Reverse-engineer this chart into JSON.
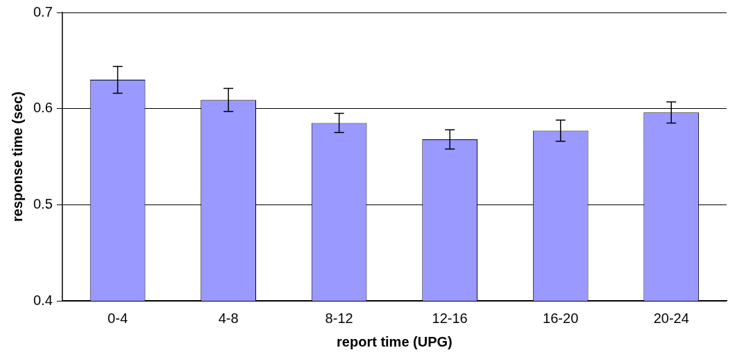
{
  "chart_data": {
    "type": "bar",
    "xlabel": "report time (UPG)",
    "ylabel": "response time (sec)",
    "categories": [
      "0-4",
      "4-8",
      "8-12",
      "12-16",
      "16-20",
      "20-24"
    ],
    "values": [
      0.63,
      0.609,
      0.585,
      0.568,
      0.577,
      0.596
    ],
    "errors": [
      0.014,
      0.012,
      0.01,
      0.01,
      0.011,
      0.011
    ],
    "color": "#9999ff",
    "ylim": [
      0.4,
      0.7
    ],
    "yticks": [
      0.4,
      0.5,
      0.6,
      0.7
    ],
    "grid": "y",
    "legend": false
  }
}
